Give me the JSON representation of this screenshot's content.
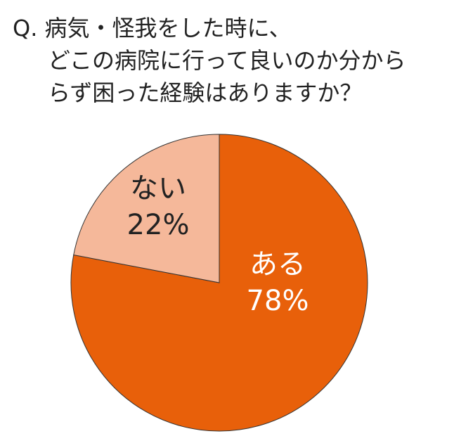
{
  "chart_data": {
    "type": "pie",
    "title": [
      "Q. 病気・怪我をした時に、",
      "どこの病院に行って良いのか分から",
      "らず困った経験はありますか？"
    ],
    "categories": [
      "ある",
      "ない"
    ],
    "values": [
      78,
      22
    ],
    "value_labels": [
      "78%",
      "22%"
    ],
    "colors": [
      "#e8600a",
      "#f5b89a"
    ],
    "label_colors": [
      "#ffffff",
      "#222222"
    ]
  }
}
